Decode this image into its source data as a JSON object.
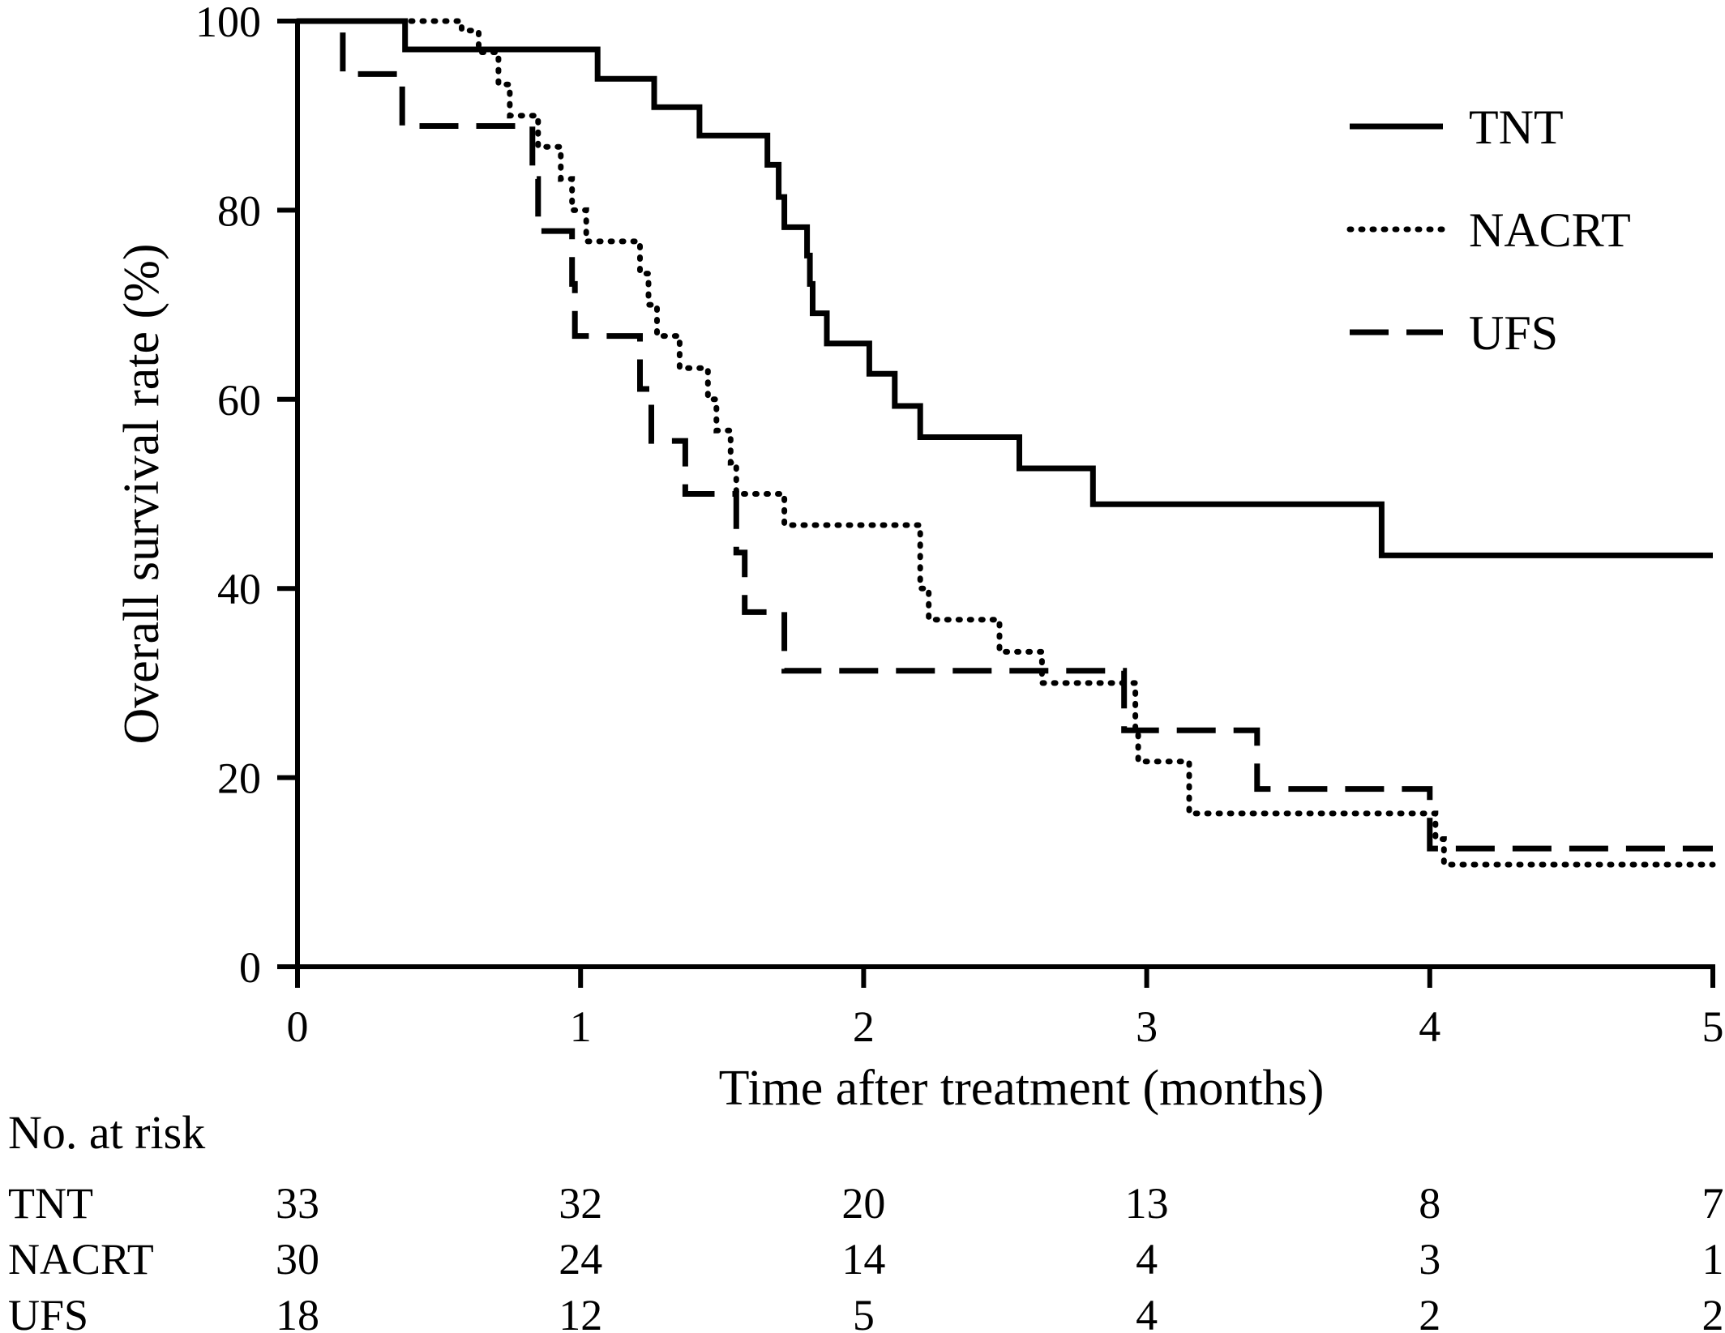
{
  "chart_data": {
    "type": "line",
    "step": true,
    "xlabel": "Time after treatment (months)",
    "ylabel": "Overall survival rate (%)",
    "xlim": [
      0,
      5
    ],
    "ylim": [
      0,
      100
    ],
    "x_ticks": [
      0,
      1,
      2,
      3,
      4,
      5
    ],
    "y_ticks": [
      0,
      20,
      40,
      60,
      80,
      100
    ],
    "grid": false,
    "legend_position": "top-right",
    "series": [
      {
        "name": "TNT",
        "style": "solid",
        "color": "#000000",
        "points": [
          [
            0,
            100
          ],
          [
            0.38,
            100
          ],
          [
            0.38,
            97
          ],
          [
            1.06,
            97
          ],
          [
            1.06,
            93.9
          ],
          [
            1.26,
            93.9
          ],
          [
            1.26,
            90.9
          ],
          [
            1.42,
            90.9
          ],
          [
            1.42,
            87.9
          ],
          [
            1.66,
            87.9
          ],
          [
            1.66,
            84.8
          ],
          [
            1.7,
            84.8
          ],
          [
            1.7,
            81.4
          ],
          [
            1.72,
            81.4
          ],
          [
            1.72,
            78.2
          ],
          [
            1.8,
            78.2
          ],
          [
            1.8,
            75.2
          ],
          [
            1.81,
            75.2
          ],
          [
            1.81,
            72.2
          ],
          [
            1.82,
            72.2
          ],
          [
            1.82,
            69.1
          ],
          [
            1.87,
            69.1
          ],
          [
            1.87,
            65.9
          ],
          [
            2.02,
            65.9
          ],
          [
            2.02,
            62.7
          ],
          [
            2.11,
            62.7
          ],
          [
            2.11,
            59.3
          ],
          [
            2.2,
            59.3
          ],
          [
            2.2,
            56.0
          ],
          [
            2.55,
            56.0
          ],
          [
            2.55,
            52.7
          ],
          [
            2.81,
            52.7
          ],
          [
            2.81,
            48.9
          ],
          [
            3.83,
            48.9
          ],
          [
            3.83,
            43.5
          ],
          [
            5.0,
            43.5
          ]
        ]
      },
      {
        "name": "NACRT",
        "style": "dotted",
        "color": "#000000",
        "points": [
          [
            0,
            100
          ],
          [
            0.58,
            100
          ],
          [
            0.58,
            99
          ],
          [
            0.64,
            99
          ],
          [
            0.64,
            96.7
          ],
          [
            0.71,
            96.7
          ],
          [
            0.71,
            93.3
          ],
          [
            0.75,
            93.3
          ],
          [
            0.75,
            90
          ],
          [
            0.85,
            90
          ],
          [
            0.85,
            86.7
          ],
          [
            0.93,
            86.7
          ],
          [
            0.93,
            83.3
          ],
          [
            0.97,
            83.3
          ],
          [
            0.97,
            80
          ],
          [
            1.02,
            80
          ],
          [
            1.02,
            76.7
          ],
          [
            1.21,
            76.7
          ],
          [
            1.21,
            73.3
          ],
          [
            1.24,
            73.3
          ],
          [
            1.24,
            70
          ],
          [
            1.27,
            70
          ],
          [
            1.27,
            66.7
          ],
          [
            1.35,
            66.7
          ],
          [
            1.35,
            63.3
          ],
          [
            1.45,
            63.3
          ],
          [
            1.45,
            60
          ],
          [
            1.48,
            60
          ],
          [
            1.48,
            56.7
          ],
          [
            1.53,
            56.7
          ],
          [
            1.53,
            53.3
          ],
          [
            1.55,
            53.3
          ],
          [
            1.55,
            50
          ],
          [
            1.72,
            50
          ],
          [
            1.72,
            46.7
          ],
          [
            2.2,
            46.7
          ],
          [
            2.2,
            40
          ],
          [
            2.23,
            40
          ],
          [
            2.23,
            36.7
          ],
          [
            2.48,
            36.7
          ],
          [
            2.48,
            33.3
          ],
          [
            2.63,
            33.3
          ],
          [
            2.63,
            30
          ],
          [
            2.96,
            30
          ],
          [
            2.96,
            25
          ],
          [
            2.97,
            25
          ],
          [
            2.97,
            21.7
          ],
          [
            3.15,
            21.7
          ],
          [
            3.15,
            16.2
          ],
          [
            4.02,
            16.2
          ],
          [
            4.02,
            13.5
          ],
          [
            4.05,
            13.5
          ],
          [
            4.05,
            10.8
          ],
          [
            5.0,
            10.8
          ]
        ]
      },
      {
        "name": "UFS",
        "style": "dashed",
        "color": "#000000",
        "points": [
          [
            0,
            100
          ],
          [
            0.16,
            100
          ],
          [
            0.16,
            94.4
          ],
          [
            0.37,
            94.4
          ],
          [
            0.37,
            88.9
          ],
          [
            0.83,
            88.9
          ],
          [
            0.83,
            83.3
          ],
          [
            0.85,
            83.3
          ],
          [
            0.85,
            77.8
          ],
          [
            0.97,
            77.8
          ],
          [
            0.97,
            72.2
          ],
          [
            0.98,
            72.2
          ],
          [
            0.98,
            66.7
          ],
          [
            1.21,
            66.7
          ],
          [
            1.21,
            61.1
          ],
          [
            1.25,
            61.1
          ],
          [
            1.25,
            55.6
          ],
          [
            1.37,
            55.6
          ],
          [
            1.37,
            50
          ],
          [
            1.55,
            50
          ],
          [
            1.55,
            43.8
          ],
          [
            1.58,
            43.8
          ],
          [
            1.58,
            37.5
          ],
          [
            1.72,
            37.5
          ],
          [
            1.72,
            31.3
          ],
          [
            2.92,
            31.3
          ],
          [
            2.92,
            25
          ],
          [
            3.39,
            25
          ],
          [
            3.39,
            18.8
          ],
          [
            4.0,
            18.8
          ],
          [
            4.0,
            12.5
          ],
          [
            5.0,
            12.5
          ]
        ]
      }
    ]
  },
  "risk_table": {
    "title": "No. at risk",
    "times": [
      0,
      1,
      2,
      3,
      4,
      5
    ],
    "rows": [
      {
        "label": "TNT",
        "values": [
          "33",
          "32",
          "20",
          "13",
          "8",
          "7"
        ]
      },
      {
        "label": "NACRT",
        "values": [
          "30",
          "24",
          "14",
          "4",
          "3",
          "1"
        ]
      },
      {
        "label": "UFS",
        "values": [
          "18",
          "12",
          "5",
          "4",
          "2",
          "2"
        ]
      }
    ]
  }
}
